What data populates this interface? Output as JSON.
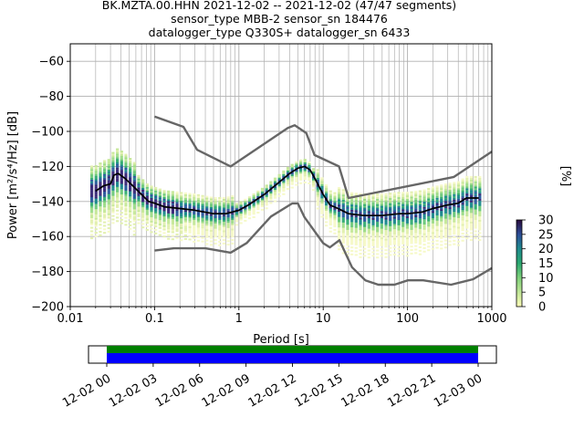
{
  "header": {
    "line1": "BK.MZTA.00.HHN   2021-12-02 -- 2021-12-02  (47/47 segments)",
    "line2": "sensor_type MBB-2 sensor_sn 184476",
    "line3": "datalogger_type Q330S+ datalogger_sn 6433"
  },
  "chart_data": [
    {
      "type": "heatmap",
      "xlabel": "Period [s]",
      "ylabel": "Power [m²/s⁴/Hz] [dB]",
      "xscale": "log",
      "xlim": [
        0.01,
        1000
      ],
      "ylim": [
        -200,
        -50
      ],
      "x_ticks": [
        0.01,
        0.1,
        1,
        10,
        100,
        1000
      ],
      "x_tick_labels": [
        "0.01",
        "0.1",
        "1",
        "10",
        "100",
        "1000"
      ],
      "y_ticks": [
        -200,
        -180,
        -160,
        -140,
        -120,
        -100,
        -80,
        -60
      ],
      "y_tick_labels": [
        "−200",
        "−180",
        "−160",
        "−140",
        "−120",
        "−100",
        "−80",
        "−60"
      ],
      "grid": true,
      "colorbar": {
        "label": "[%]",
        "range": [
          0,
          30
        ],
        "ticks": [
          0,
          5,
          10,
          15,
          20,
          25,
          30
        ],
        "tick_labels": [
          "0",
          "5",
          "10",
          "15",
          "20",
          "25",
          "30"
        ],
        "colormap": "pqlx"
      },
      "series": [
        {
          "role": "mode",
          "color": "#000000",
          "points": [
            [
              0.02,
              -134
            ],
            [
              0.025,
              -131
            ],
            [
              0.03,
              -130
            ],
            [
              0.033,
              -125
            ],
            [
              0.037,
              -124
            ],
            [
              0.045,
              -127
            ],
            [
              0.055,
              -131
            ],
            [
              0.07,
              -136
            ],
            [
              0.085,
              -140
            ],
            [
              0.1,
              -141
            ],
            [
              0.13,
              -143
            ],
            [
              0.2,
              -144
            ],
            [
              0.3,
              -145
            ],
            [
              0.5,
              -147
            ],
            [
              0.7,
              -147
            ],
            [
              1.0,
              -145
            ],
            [
              1.3,
              -142
            ],
            [
              2,
              -136
            ],
            [
              3,
              -129
            ],
            [
              4,
              -124
            ],
            [
              5,
              -121
            ],
            [
              6,
              -120
            ],
            [
              7,
              -122
            ],
            [
              8,
              -127
            ],
            [
              10,
              -136
            ],
            [
              12,
              -142
            ],
            [
              15,
              -144
            ],
            [
              20,
              -147
            ],
            [
              30,
              -148
            ],
            [
              50,
              -148
            ],
            [
              80,
              -147
            ],
            [
              100,
              -147
            ],
            [
              150,
              -146
            ],
            [
              200,
              -144
            ],
            [
              300,
              -142
            ],
            [
              400,
              -141
            ],
            [
              500,
              -138
            ],
            [
              700,
              -138
            ]
          ]
        },
        {
          "role": "nhnm",
          "color": "#666666",
          "points": [
            [
              0.1,
              -91.5
            ],
            [
              0.22,
              -97.4
            ],
            [
              0.32,
              -110.5
            ],
            [
              0.8,
              -120
            ],
            [
              3.8,
              -98
            ],
            [
              4.6,
              -96.5
            ],
            [
              6.3,
              -101
            ],
            [
              7.9,
              -113.5
            ],
            [
              15.4,
              -120
            ],
            [
              20,
              -138
            ],
            [
              354.8,
              -126
            ],
            [
              1000,
              -111.5
            ]
          ]
        },
        {
          "role": "nlnm",
          "color": "#666666",
          "points": [
            [
              0.1,
              -168
            ],
            [
              0.17,
              -166.7
            ],
            [
              0.4,
              -166.7
            ],
            [
              0.8,
              -169.2
            ],
            [
              1.24,
              -163.7
            ],
            [
              2.4,
              -148.6
            ],
            [
              4.3,
              -141.1
            ],
            [
              5,
              -141.1
            ],
            [
              6,
              -149
            ],
            [
              10,
              -163.8
            ],
            [
              12,
              -166.2
            ],
            [
              15.6,
              -162.1
            ],
            [
              21.9,
              -177.5
            ],
            [
              31.6,
              -185
            ],
            [
              45,
              -187.5
            ],
            [
              70,
              -187.5
            ],
            [
              101,
              -185
            ],
            [
              154,
              -185
            ],
            [
              328,
              -187.5
            ],
            [
              600,
              -184.4
            ],
            [
              1000,
              -178
            ]
          ]
        }
      ]
    },
    {
      "type": "bar",
      "x_tick_labels": [
        "12-02 00",
        "12-02 03",
        "12-02 06",
        "12-02 09",
        "12-02 12",
        "12-02 15",
        "12-02 18",
        "12-02 21",
        "12-03 00"
      ],
      "colors": {
        "available": "#008000",
        "used": "#0000ff"
      }
    }
  ]
}
